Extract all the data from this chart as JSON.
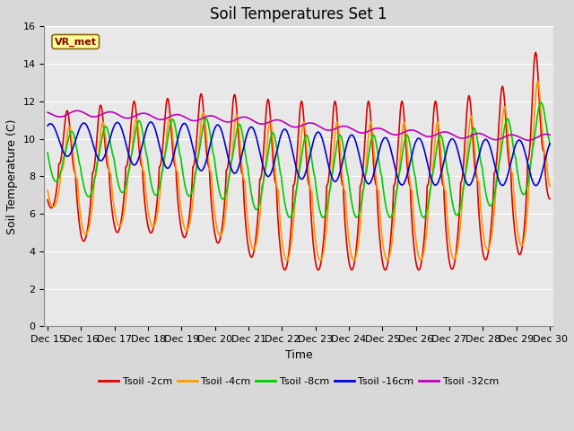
{
  "title": "Soil Temperatures Set 1",
  "xlabel": "Time",
  "ylabel": "Soil Temperature (C)",
  "ylim": [
    0,
    16
  ],
  "annotation": "VR_met",
  "series": [
    {
      "label": "Tsoil -2cm",
      "color": "#dd0000",
      "lw": 1.2
    },
    {
      "label": "Tsoil -4cm",
      "color": "#ff9900",
      "lw": 1.2
    },
    {
      "label": "Tsoil -8cm",
      "color": "#00cc00",
      "lw": 1.2
    },
    {
      "label": "Tsoil -16cm",
      "color": "#0000dd",
      "lw": 1.2
    },
    {
      "label": "Tsoil -32cm",
      "color": "#bb00bb",
      "lw": 1.2
    }
  ],
  "background_color": "#e8e8e8",
  "grid_color": "#ffffff",
  "title_fontsize": 12,
  "axis_fontsize": 9,
  "tick_fontsize": 8
}
